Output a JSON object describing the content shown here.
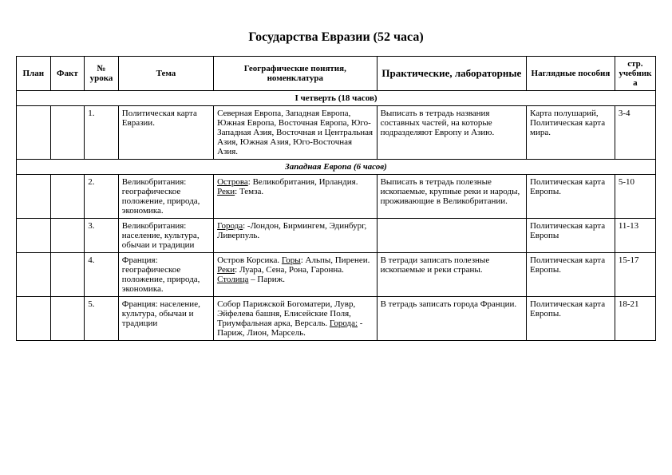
{
  "title": "Государства Евразии (52 часа)",
  "headers": {
    "plan": "План",
    "fact": "Факт",
    "num": "№ урока",
    "theme": "Тема",
    "concepts": "Географические понятия, номенклатура",
    "practical": "Практические, лабораторные",
    "aids": "Наглядные пособия",
    "page": "стр. учебника"
  },
  "quarter": "I четверть (18 часов)",
  "section": "Западная Европа (6 часов)",
  "rows": [
    {
      "num": "1.",
      "theme": "Политическая карта Евразии.",
      "concepts": "Северная Европа, Западная Европа, Южная Европа, Восточная Европа, Юго-Западная Азия, Восточная и Центральная Азия, Южная Азия, Юго-Восточная Азия.",
      "practical": "Выписать в тетрадь названия составных частей, на которые подразделяют Европу и Азию.",
      "aids": "Карта полушарий, Политическая карта мира.",
      "page": "3-4"
    },
    {
      "num": "2.",
      "theme": "Великобритания: географическое положение, природа, экономика.",
      "concepts_parts": [
        {
          "label": "Острова",
          "text": ": Великобритания, Ирландия. "
        },
        {
          "label": "Реки",
          "text": ": Темза."
        }
      ],
      "practical": "Выписать в тетрадь полезные ископаемые, крупные реки и народы, проживающие в Великобритании.",
      "aids": "Политическая карта Европы.",
      "page": "5-10"
    },
    {
      "num": "3.",
      "theme": "Великобритания: население, культура, обычаи и традиции",
      "concepts_parts": [
        {
          "label": "Города",
          "text": ": -Лондон, Бирмингем, Эдинбург, Ливерпуль."
        }
      ],
      "practical": "",
      "aids": "Политическая карта Европы",
      "page": "11-13"
    },
    {
      "num": "4.",
      "theme": "Франция: географическое положение, природа, экономика.",
      "concepts_pre": "Остров Корсика. ",
      "concepts_parts": [
        {
          "label": "Горы",
          "text": ": Альпы, Пиренеи. "
        },
        {
          "label": "Реки",
          "text": ": Луара, Сена, Рона, Гаронна. "
        },
        {
          "label": "Столица",
          "text": " – Париж."
        }
      ],
      "practical": "В тетради записать полезные ископаемые и реки страны.",
      "aids": "Политическая карта Европы.",
      "page": "15-17"
    },
    {
      "num": "5.",
      "theme": "Франция: население, культура, обычаи и традиции",
      "concepts_pre": "Собор Парижской Богоматери, Лувр, Эйфелева башня, Елисейские Поля, Триумфальная арка, Версаль. ",
      "concepts_parts": [
        {
          "label": "Города:",
          "text": " - Париж, Лион, Марсель."
        }
      ],
      "practical": "В тетрадь записать города Франции.",
      "aids": "Политическая карта Европы.",
      "page": "18-21"
    }
  ]
}
